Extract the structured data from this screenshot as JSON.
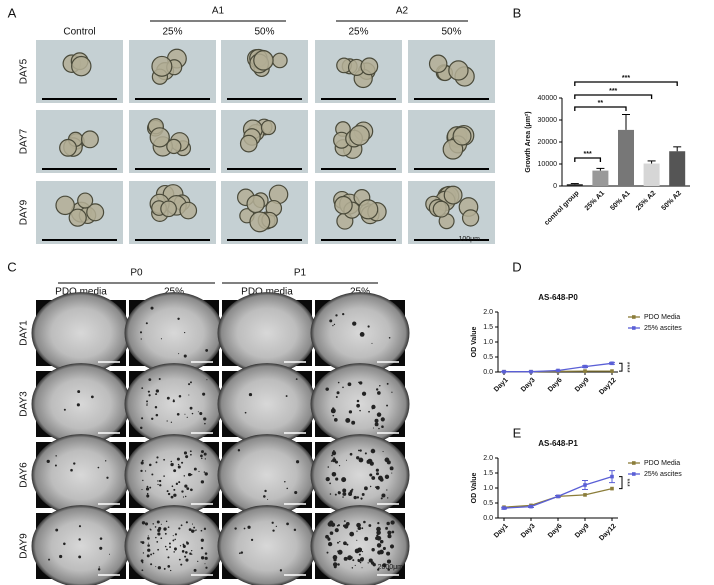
{
  "panel_labels": [
    "A",
    "B",
    "C",
    "D",
    "E"
  ],
  "panel_a": {
    "groups": [
      "A1",
      "A2"
    ],
    "columns": [
      "Control",
      "25%",
      "50%",
      "25%",
      "50%"
    ],
    "rows": [
      "DAY5",
      "DAY7",
      "DAY9"
    ],
    "scale_bar": "100μm"
  },
  "panel_c": {
    "groups": [
      "P0",
      "P1"
    ],
    "columns": [
      "PDO media",
      "25%",
      "PDO media",
      "25%"
    ],
    "rows": [
      "DAY1",
      "DAY3",
      "DAY6",
      "DAY9"
    ],
    "scale_bar": "2000μm"
  },
  "chart_data": [
    {
      "type": "bar",
      "ylabel": "Growth Area (μm²)",
      "categories": [
        "control group",
        "25% A1",
        "50% A1",
        "25% A2",
        "50% A2"
      ],
      "values": [
        800,
        7000,
        25500,
        10200,
        15800
      ],
      "errors": [
        300,
        1000,
        7000,
        1200,
        2000
      ],
      "colors": [
        "#222222",
        "#999999",
        "#777777",
        "#d6d6d6",
        "#555555"
      ],
      "ylim": [
        0,
        40000
      ],
      "yticks": [
        0,
        10000,
        20000,
        30000,
        40000
      ],
      "annotations": [
        {
          "text": "***",
          "between": [
            "control group",
            "25% A1"
          ]
        },
        {
          "text": "**",
          "between": [
            "control group",
            "50% A1"
          ]
        },
        {
          "text": "***",
          "between": [
            "control group",
            "25% A2"
          ]
        },
        {
          "text": "***",
          "between": [
            "control group",
            "50% A2"
          ]
        }
      ]
    },
    {
      "type": "line",
      "title": "AS-648-P0",
      "ylabel": "OD Value",
      "categories": [
        "Day1",
        "Day3",
        "Day6",
        "Day9",
        "Day12"
      ],
      "series": [
        {
          "name": "PDO Media",
          "color": "#8b7d3a",
          "values": [
            0.01,
            0.01,
            0.02,
            0.03,
            0.03
          ]
        },
        {
          "name": "25% ascites",
          "color": "#5a5fd6",
          "values": [
            0.01,
            0.01,
            0.05,
            0.18,
            0.29
          ],
          "errors": [
            0.01,
            0.01,
            0.01,
            0.03,
            0.03
          ]
        }
      ],
      "ylim": [
        0,
        2
      ],
      "yticks": [
        {
          "value": 0,
          "label": "0.0"
        },
        {
          "value": 0.5,
          "label": "0.5"
        },
        {
          "value": 1,
          "label": "1.0"
        },
        {
          "value": 1.5,
          "label": "1.5"
        },
        {
          "value": 2,
          "label": "2.0"
        }
      ],
      "annotations": [
        {
          "text": "****"
        }
      ]
    },
    {
      "type": "line",
      "title": "AS-648-P1",
      "ylabel": "OD Value",
      "categories": [
        "Day1",
        "Day3",
        "Day6",
        "Day9",
        "Day12"
      ],
      "series": [
        {
          "name": "PDO Media",
          "color": "#8b7d3a",
          "values": [
            0.36,
            0.42,
            0.72,
            0.77,
            0.98
          ]
        },
        {
          "name": "25% ascites",
          "color": "#5a5fd6",
          "values": [
            0.33,
            0.38,
            0.72,
            1.1,
            1.38
          ],
          "errors": [
            0.03,
            0.03,
            0.03,
            0.15,
            0.2
          ]
        }
      ],
      "ylim": [
        0,
        2
      ],
      "yticks": [
        {
          "value": 0,
          "label": "0.0"
        },
        {
          "value": 0.5,
          "label": "0.5"
        },
        {
          "value": 1,
          "label": "1.0"
        },
        {
          "value": 1.5,
          "label": "1.5"
        },
        {
          "value": 2,
          "label": "2.0"
        }
      ],
      "annotations": [
        {
          "text": "***"
        }
      ]
    }
  ]
}
